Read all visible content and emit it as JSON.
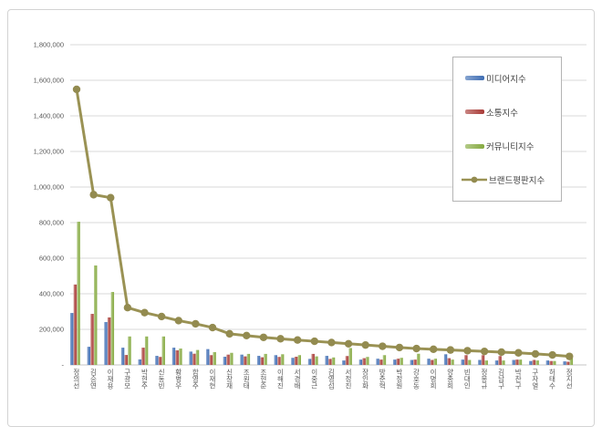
{
  "chart_data": {
    "type": "bar",
    "note": "grouped bars with overlaid line series",
    "title": "",
    "xlabel": "",
    "ylabel": "",
    "ylim": [
      0,
      1800000
    ],
    "ytick_step": 200000,
    "ytick_labels": [
      "-",
      "200,000",
      "400,000",
      "600,000",
      "800,000",
      "1,000,000",
      "1,200,000",
      "1,400,000",
      "1,600,000",
      "1,800,000"
    ],
    "grid": true,
    "legend_position": "upper-right-overlay",
    "categories": [
      "정의선",
      "김승연",
      "이재용",
      "구광모",
      "박현주",
      "신동빈",
      "황병우",
      "함영주",
      "이재현",
      "신창재",
      "조원태",
      "조현준",
      "이해진",
      "서경배",
      "이중근",
      "김영섭",
      "서정진",
      "장인화",
      "방준혁",
      "박정원",
      "강호동",
      "이명희",
      "양종희",
      "빈대인",
      "정몽규",
      "김남구",
      "박찬구",
      "구자열",
      "허태수",
      "정지선"
    ],
    "series": [
      {
        "name": "미디어지수",
        "key": "media",
        "kind": "bar",
        "color": "#3e6db3",
        "values": [
          292000,
          102000,
          241000,
          97000,
          31000,
          51000,
          97000,
          75000,
          89000,
          46000,
          58000,
          51000,
          55000,
          40000,
          34000,
          51000,
          25000,
          30000,
          35000,
          30000,
          28000,
          35000,
          60000,
          30000,
          28000,
          25000,
          28000,
          22000,
          25000,
          20000
        ]
      },
      {
        "name": "소통지수",
        "key": "communication",
        "kind": "bar",
        "color": "#a83a36",
        "values": [
          452000,
          287000,
          267000,
          56000,
          97000,
          45000,
          82000,
          63000,
          55000,
          58000,
          48000,
          43000,
          45000,
          46000,
          62000,
          34000,
          50000,
          38000,
          30000,
          35000,
          30000,
          28000,
          38000,
          55000,
          55000,
          50000,
          30000,
          28000,
          22000,
          18000
        ]
      },
      {
        "name": "커뮤니티지수",
        "key": "community",
        "kind": "bar",
        "color": "#84a93f",
        "values": [
          805000,
          559000,
          410000,
          160000,
          160000,
          160000,
          92000,
          84000,
          72000,
          68000,
          62000,
          62000,
          60000,
          55000,
          48000,
          42000,
          95000,
          45000,
          55000,
          40000,
          63000,
          35000,
          30000,
          28000,
          25000,
          25000,
          30000,
          25000,
          22000,
          40000
        ]
      },
      {
        "name": "브랜드평판지수",
        "key": "brand-reputation",
        "kind": "line",
        "color": "#9a9254",
        "marker_color": "#938b50",
        "values": [
          1549000,
          957000,
          940000,
          322000,
          294000,
          272000,
          249000,
          231000,
          210000,
          175000,
          165000,
          155000,
          147000,
          140000,
          133000,
          126000,
          119000,
          112000,
          105000,
          98000,
          92000,
          88000,
          84000,
          80000,
          76000,
          72000,
          68000,
          62000,
          56000,
          48000
        ]
      }
    ]
  }
}
